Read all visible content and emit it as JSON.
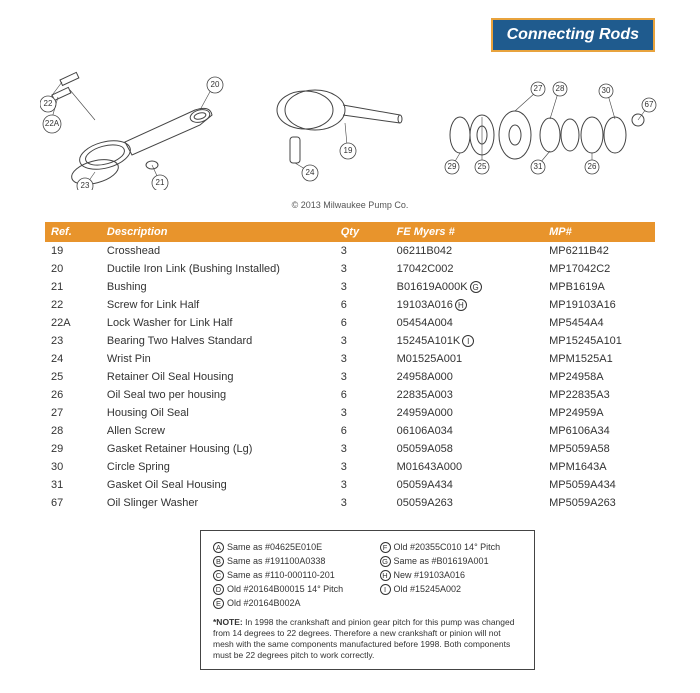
{
  "header": {
    "title": "Connecting Rods"
  },
  "copyright": "© 2013 Milwaukee Pump Co.",
  "table": {
    "columns": {
      "ref": "Ref.",
      "desc": "Description",
      "qty": "Qty",
      "fe": "FE Myers #",
      "mp": "MP#"
    },
    "rows": [
      {
        "ref": "19",
        "desc": "Crosshead",
        "qty": "3",
        "fe": "06211B042",
        "mp": "MP6211B42",
        "fe_letter": ""
      },
      {
        "ref": "20",
        "desc": "Ductile Iron Link (Bushing Installed)",
        "qty": "3",
        "fe": "17042C002",
        "mp": "MP17042C2",
        "fe_letter": ""
      },
      {
        "ref": "21",
        "desc": "Bushing",
        "qty": "3",
        "fe": "B01619A000K",
        "mp": "MPB1619A",
        "fe_letter": "G"
      },
      {
        "ref": "22",
        "desc": "Screw for Link Half",
        "qty": "6",
        "fe": "19103A016",
        "mp": "MP19103A16",
        "fe_letter": "H"
      },
      {
        "ref": "22A",
        "desc": "Lock Washer for Link Half",
        "qty": "6",
        "fe": "05454A004",
        "mp": "MP5454A4",
        "fe_letter": ""
      },
      {
        "ref": "23",
        "desc": "Bearing Two Halves Standard",
        "qty": "3",
        "fe": "15245A101K",
        "mp": "MP15245A101",
        "fe_letter": "I"
      },
      {
        "ref": "24",
        "desc": "Wrist Pin",
        "qty": "3",
        "fe": "M01525A001",
        "mp": "MPM1525A1",
        "fe_letter": ""
      },
      {
        "ref": "25",
        "desc": "Retainer Oil Seal Housing",
        "qty": "3",
        "fe": "24958A000",
        "mp": "MP24958A",
        "fe_letter": ""
      },
      {
        "ref": "26",
        "desc": "Oil Seal two per housing",
        "qty": "6",
        "fe": "22835A003",
        "mp": "MP22835A3",
        "fe_letter": ""
      },
      {
        "ref": "27",
        "desc": "Housing Oil Seal",
        "qty": "3",
        "fe": "24959A000",
        "mp": "MP24959A",
        "fe_letter": ""
      },
      {
        "ref": "28",
        "desc": "Allen Screw",
        "qty": "6",
        "fe": "06106A034",
        "mp": "MP6106A34",
        "fe_letter": ""
      },
      {
        "ref": "29",
        "desc": "Gasket Retainer Housing (Lg)",
        "qty": "3",
        "fe": "05059A058",
        "mp": "MP5059A58",
        "fe_letter": ""
      },
      {
        "ref": "30",
        "desc": "Circle Spring",
        "qty": "3",
        "fe": "M01643A000",
        "mp": "MPM1643A",
        "fe_letter": ""
      },
      {
        "ref": "31",
        "desc": "Gasket Oil Seal Housing",
        "qty": "3",
        "fe": "05059A434",
        "mp": "MP5059A434",
        "fe_letter": ""
      },
      {
        "ref": "67",
        "desc": "Oil Slinger Washer",
        "qty": "3",
        "fe": "05059A263",
        "mp": "MP5059A263",
        "fe_letter": ""
      }
    ]
  },
  "notes": {
    "left": [
      {
        "l": "A",
        "t": "Same as #04625E010E"
      },
      {
        "l": "B",
        "t": "Same as #191100A0338"
      },
      {
        "l": "C",
        "t": "Same as #110-000110-201"
      },
      {
        "l": "D",
        "t": "Old #20164B00015 14° Pitch"
      },
      {
        "l": "E",
        "t": "Old #20164B002A"
      }
    ],
    "right": [
      {
        "l": "F",
        "t": "Old #20355C010 14° Pitch"
      },
      {
        "l": "G",
        "t": "Same as #B01619A001"
      },
      {
        "l": "H",
        "t": "New #19103A016"
      },
      {
        "l": "I",
        "t": "Old #15245A002"
      }
    ],
    "footer_bold": "*NOTE:",
    "footer": " In 1998 the crankshaft and pinion gear pitch for this pump was changed from 14 degrees to 22 degrees. Therefore a new crankshaft or pinion will not mesh with the same components manufactured before 1998. Both components must be 22 degrees pitch to work correctly."
  },
  "callouts": {
    "d1": [
      "20",
      "21",
      "22",
      "22A",
      "23"
    ],
    "d2": [
      "19",
      "24"
    ],
    "d3": [
      "25",
      "26",
      "27",
      "28",
      "29",
      "30",
      "31",
      "67"
    ]
  }
}
